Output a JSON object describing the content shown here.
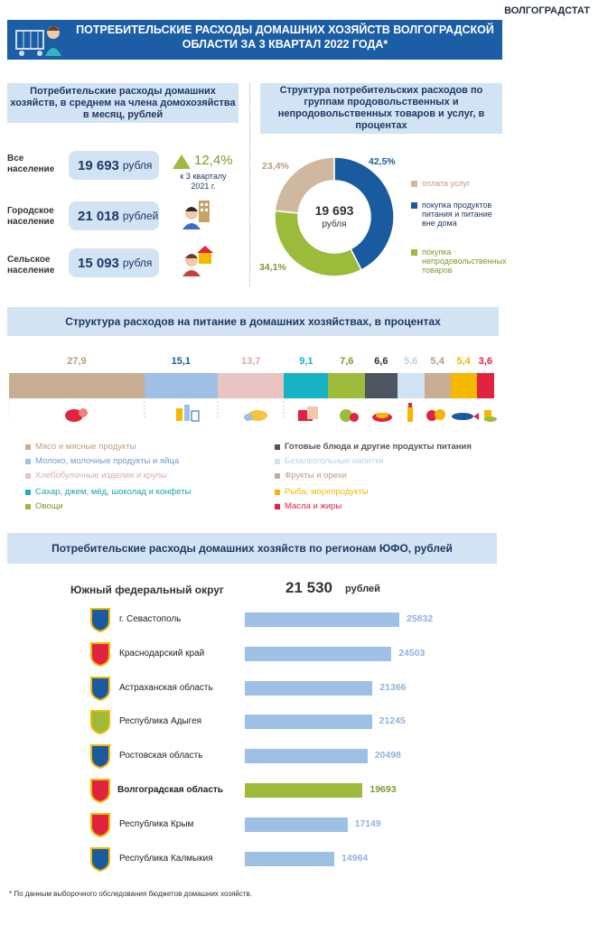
{
  "agency": "ВОЛГОГРАДСТАТ",
  "title": "ПОТРЕБИТЕЛЬСКИЕ РАСХОДЫ ДОМАШНИХ ХОЗЯЙСТВ ВОЛГОГРАДСКОЙ ОБЛАСТИ ЗА 3 КВАРТАЛ  2022 ГОДА*",
  "left_block": {
    "header": "Потребительские расходы домашних хозяйств, в среднем на члена домохозяйства в месяц, рублей",
    "rows": [
      {
        "label": "Все население",
        "value": "19 693",
        "unit": "рубля"
      },
      {
        "label": "Городское население",
        "value": "21 018",
        "unit": "рублей"
      },
      {
        "label": "Сельское население",
        "value": "15 093",
        "unit": "рубля"
      }
    ],
    "growth": {
      "value": "12,4%",
      "note": "к 3 кварталу 2021 г."
    }
  },
  "chart_data": [
    {
      "type": "pie",
      "title": "Структура потребительских расходов по группам продовольственных и непродовольственных товаров и услуг, в процентах",
      "center_value": "19 693",
      "center_unit": "рубля",
      "slices": [
        {
          "name": "покупка продуктов питания и питание вне дома",
          "value": 42.5,
          "label": "42,5%",
          "color": "#1a5aa0"
        },
        {
          "name": "покупка непродовольственных товаров",
          "value": 34.1,
          "label": "34,1%",
          "color": "#9cbb3a"
        },
        {
          "name": "оплата услуг",
          "value": 23.4,
          "label": "23,4%",
          "color": "#cfb8a0"
        }
      ],
      "legend_order": [
        "оплата услуг",
        "покупка продуктов питания и питание вне дома",
        "покупка непродовольственных товаров"
      ]
    },
    {
      "type": "bar",
      "title": "Структура расходов на питание в домашних хозяйствах, в процентах",
      "stacked": true,
      "segments": [
        {
          "name": "Мясо и мясные продукты",
          "value": 27.9,
          "label": "27,9",
          "color": "#c9ad92"
        },
        {
          "name": "Молоко, молочные продукты и яйца",
          "value": 15.1,
          "label": "15,1",
          "color": "#9ec0e4"
        },
        {
          "name": "Хлебобулочные изделия и крупы",
          "value": 13.7,
          "label": "13,7",
          "color": "#eac3c3"
        },
        {
          "name": "Сахар, джем, мёд, шоколад и конфеты",
          "value": 9.1,
          "label": "9,1",
          "color": "#17b3c4"
        },
        {
          "name": "Овощи",
          "value": 7.6,
          "label": "7,6",
          "color": "#9cbb3a"
        },
        {
          "name": "Готовые блюда и другие продукты питания",
          "value": 6.6,
          "label": "6,6",
          "color": "#4d5560"
        },
        {
          "name": "Безалкогольные напитки",
          "value": 5.6,
          "label": "5,6",
          "color": "#cfe3f5"
        },
        {
          "name": "Фрукты и орехи",
          "value": 5.4,
          "label": "5,4",
          "color": "#c9ad92"
        },
        {
          "name": "Рыба, морепродукты",
          "value": 5.4,
          "label": "5,4",
          "color": "#f5b800"
        },
        {
          "name": "Масла и жиры",
          "value": 3.6,
          "label": "3,6",
          "color": "#e0243f"
        }
      ]
    },
    {
      "type": "bar",
      "orientation": "horizontal",
      "title": "Потребительские расходы домашних хозяйств по регионам ЮФО, рублей",
      "unit": "рублей",
      "total": {
        "name": "Южный федеральный округ",
        "value": "21 530"
      },
      "categories": [
        "г. Севастополь",
        "Краснодарский край",
        "Астраханская область",
        "Республика Адыгея",
        "Ростовская область",
        "Волгоградская область",
        "Республика Крым",
        "Республика Калмыкия"
      ],
      "values": [
        25832,
        24503,
        21366,
        21245,
        20498,
        19693,
        17149,
        14964
      ],
      "highlight": "Волгоградская область",
      "colors": {
        "default": "#9ec0e4",
        "highlight": "#9cbb3a"
      }
    }
  ],
  "footnote": "* По данным  выборочного обследования бюджетов домашних хозяйств."
}
